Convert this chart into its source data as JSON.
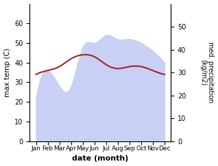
{
  "months": [
    "Jan",
    "Feb",
    "Mar",
    "Apr",
    "May",
    "Jun",
    "Jul",
    "Aug",
    "Sep",
    "Oct",
    "Nov",
    "Dec"
  ],
  "temp_max": [
    34,
    36,
    38,
    42,
    44,
    43,
    39,
    37,
    38,
    38,
    36,
    34
  ],
  "precipitation": [
    22,
    36,
    28,
    28,
    48,
    50,
    54,
    52,
    52,
    50,
    46,
    40
  ],
  "temp_color": "#aa2020",
  "precip_fill_color": "#c8d0f5",
  "ylabel_left": "max temp (C)",
  "ylabel_right": "med. precipitation\n(kg/m2)",
  "xlabel": "date (month)",
  "ylim_left": [
    0,
    70
  ],
  "ylim_right": [
    0,
    60
  ],
  "yticks_left": [
    0,
    10,
    20,
    30,
    40,
    50,
    60
  ],
  "yticks_right": [
    0,
    10,
    20,
    30,
    40,
    50
  ],
  "figsize": [
    3.18,
    2.43
  ],
  "dpi": 100
}
